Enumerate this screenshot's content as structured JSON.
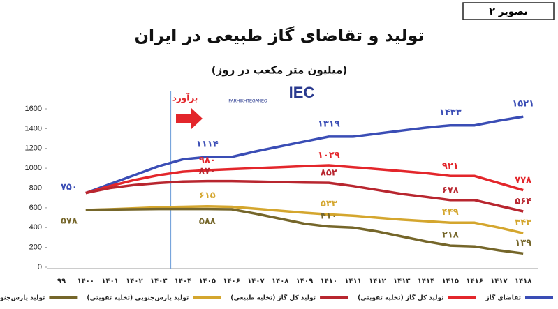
{
  "figure_label": "تصویر ۲",
  "logo": {
    "text": "IEC",
    "site": "FARHIKHTEGANEO"
  },
  "chart_data": {
    "type": "line",
    "title": "تولید و تقاضای گاز  طبیعی در ایران",
    "subtitle": "(میلیون متر مکعب در روز)",
    "annotation": "برآورد",
    "categories": [
      "۹۹",
      "۱۴۰۰",
      "۱۴۰۱",
      "۱۴۰۲",
      "۱۴۰۳",
      "۱۴۰۴",
      "۱۴۰۵",
      "۱۴۰۶",
      "۱۴۰۷",
      "۱۴۰۸",
      "۱۴۰۹",
      "۱۴۱۰",
      "۱۴۱۱",
      "۱۴۱۲",
      "۱۴۱۳",
      "۱۴۱۴",
      "۱۴۱۵",
      "۱۴۱۶",
      "۱۴۱۷",
      "۱۴۱۸"
    ],
    "ylim": [
      0,
      1600
    ],
    "yticks": [
      0,
      200,
      400,
      600,
      800,
      1000,
      1200,
      1400,
      1600
    ],
    "grid": false,
    "series": [
      {
        "name": "تقاضای گاز",
        "color": "#3a4db5",
        "values": [
          null,
          750,
          840,
          930,
          1020,
          1090,
          1114,
          1114,
          1170,
          1220,
          1270,
          1319,
          1319,
          1350,
          1380,
          1410,
          1433,
          1433,
          1480,
          1521
        ],
        "value_labels": [
          null,
          "۷۵۰",
          null,
          null,
          null,
          null,
          "۱۱۱۴",
          null,
          null,
          null,
          null,
          "۱۳۱۹",
          null,
          null,
          null,
          null,
          "۱۴۳۳",
          null,
          null,
          "۱۵۲۱"
        ]
      },
      {
        "name": "تولید کل گاز (تخلیه تقویتی)",
        "color": "#e3262b",
        "values": [
          null,
          750,
          820,
          880,
          930,
          965,
          980,
          990,
          1000,
          1010,
          1020,
          1029,
          1010,
          990,
          970,
          950,
          921,
          921,
          850,
          778
        ],
        "value_labels": [
          null,
          null,
          null,
          null,
          null,
          null,
          "۹۸۰",
          null,
          null,
          null,
          null,
          "۱۰۲۹",
          null,
          null,
          null,
          null,
          "۹۲۱",
          null,
          null,
          "۷۷۸"
        ]
      },
      {
        "name": "تولید کل گاز (تخلیه طبیعی)",
        "color": "#b8262f",
        "values": [
          null,
          750,
          800,
          830,
          850,
          865,
          870,
          870,
          865,
          860,
          855,
          852,
          820,
          780,
          740,
          710,
          678,
          678,
          620,
          564
        ],
        "value_labels": [
          null,
          null,
          null,
          null,
          null,
          null,
          "۸۷۰",
          null,
          null,
          null,
          null,
          "۸۵۲",
          null,
          null,
          null,
          null,
          "۶۷۸",
          null,
          null,
          "۵۶۴"
        ]
      },
      {
        "name": "تولید پارس‌جنوبی (تخلیه تقویتی)",
        "color": "#d4a62e",
        "values": [
          null,
          578,
          585,
          595,
          605,
          610,
          615,
          610,
          590,
          570,
          550,
          533,
          520,
          500,
          480,
          465,
          449,
          449,
          400,
          343
        ],
        "value_labels": [
          null,
          null,
          null,
          null,
          null,
          null,
          "۶۱۵",
          null,
          null,
          null,
          null,
          "۵۳۳",
          null,
          null,
          null,
          null,
          "۴۴۹",
          null,
          null,
          "۳۴۳"
        ]
      },
      {
        "name": "تولید پارس‌جنوبی (تخلیه طبیعی)",
        "color": "#75662a",
        "values": [
          null,
          578,
          582,
          585,
          588,
          588,
          588,
          585,
          540,
          490,
          440,
          410,
          400,
          360,
          310,
          260,
          218,
          210,
          170,
          139
        ],
        "value_labels": [
          null,
          "۵۷۸",
          null,
          null,
          null,
          null,
          "۵۸۸",
          null,
          null,
          null,
          null,
          "۴۱۰",
          null,
          null,
          null,
          null,
          "۲۱۸",
          null,
          null,
          "۱۳۹"
        ]
      }
    ]
  }
}
